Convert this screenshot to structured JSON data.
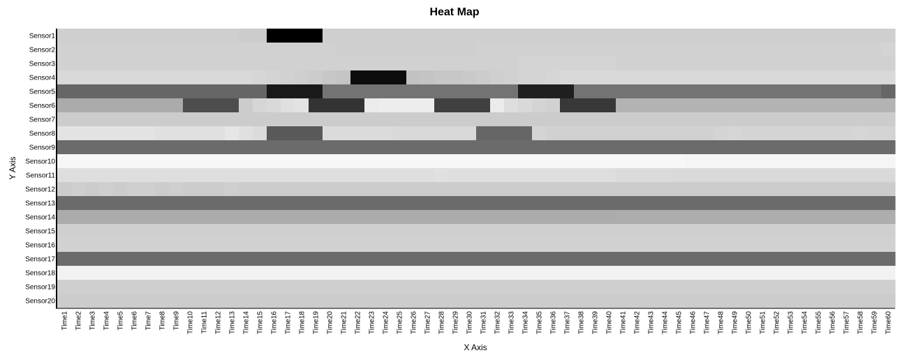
{
  "chart_data": {
    "type": "heatmap",
    "title": "Heat Map",
    "xlabel": "X Axis",
    "ylabel": "Y Axis",
    "x_categories": [
      "Time1",
      "Time2",
      "Time3",
      "Time4",
      "Time5",
      "Time6",
      "Time7",
      "Time8",
      "Time9",
      "Time10",
      "Time11",
      "Time12",
      "Time13",
      "Time14",
      "Time15",
      "Time16",
      "Time17",
      "Time18",
      "Time19",
      "Time20",
      "Time21",
      "Time22",
      "Time23",
      "Time24",
      "Time25",
      "Time26",
      "Time27",
      "Time28",
      "Time29",
      "Time30",
      "Time31",
      "Time32",
      "Time33",
      "Time34",
      "Time35",
      "Time36",
      "Time37",
      "Time38",
      "Time39",
      "Time40",
      "Time41",
      "Time42",
      "Time43",
      "Time44",
      "Time45",
      "Time46",
      "Time47",
      "Time48",
      "Time49",
      "Time50",
      "Time51",
      "Time52",
      "Time53",
      "Time54",
      "Time55",
      "Time56",
      "Time57",
      "Time58",
      "Time59",
      "Time60"
    ],
    "y_categories": [
      "Sensor1",
      "Sensor2",
      "Sensor3",
      "Sensor4",
      "Sensor5",
      "Sensor6",
      "Sensor7",
      "Sensor8",
      "Sensor9",
      "Sensor10",
      "Sensor11",
      "Sensor12",
      "Sensor13",
      "Sensor14",
      "Sensor15",
      "Sensor16",
      "Sensor17",
      "Sensor18",
      "Sensor19",
      "Sensor20"
    ],
    "color_scale": {
      "low": "#ffffff",
      "high": "#000000",
      "min": 0,
      "max": 1
    },
    "values": [
      [
        0.19,
        0.19,
        0.19,
        0.19,
        0.19,
        0.19,
        0.19,
        0.19,
        0.19,
        0.19,
        0.19,
        0.19,
        0.19,
        0.2,
        0.2,
        1.0,
        1.0,
        1.0,
        1.0,
        0.19,
        0.19,
        0.19,
        0.19,
        0.19,
        0.19,
        0.19,
        0.19,
        0.19,
        0.19,
        0.19,
        0.19,
        0.19,
        0.19,
        0.19,
        0.19,
        0.19,
        0.19,
        0.19,
        0.19,
        0.19,
        0.19,
        0.19,
        0.19,
        0.19,
        0.19,
        0.19,
        0.19,
        0.19,
        0.19,
        0.19,
        0.19,
        0.19,
        0.19,
        0.19,
        0.19,
        0.19,
        0.19,
        0.19,
        0.19,
        0.19
      ],
      [
        0.18,
        0.18,
        0.18,
        0.18,
        0.18,
        0.18,
        0.18,
        0.18,
        0.18,
        0.18,
        0.18,
        0.18,
        0.18,
        0.18,
        0.18,
        0.18,
        0.18,
        0.18,
        0.18,
        0.18,
        0.19,
        0.19,
        0.19,
        0.19,
        0.19,
        0.19,
        0.19,
        0.19,
        0.19,
        0.19,
        0.18,
        0.18,
        0.18,
        0.18,
        0.18,
        0.18,
        0.18,
        0.18,
        0.18,
        0.18,
        0.18,
        0.18,
        0.18,
        0.18,
        0.18,
        0.18,
        0.18,
        0.18,
        0.18,
        0.18,
        0.18,
        0.18,
        0.18,
        0.18,
        0.18,
        0.18,
        0.18,
        0.18,
        0.18,
        0.17
      ],
      [
        0.18,
        0.18,
        0.18,
        0.18,
        0.18,
        0.18,
        0.18,
        0.18,
        0.18,
        0.18,
        0.18,
        0.18,
        0.18,
        0.18,
        0.18,
        0.18,
        0.18,
        0.18,
        0.18,
        0.18,
        0.18,
        0.18,
        0.18,
        0.18,
        0.18,
        0.18,
        0.18,
        0.18,
        0.18,
        0.18,
        0.18,
        0.18,
        0.18,
        0.17,
        0.17,
        0.17,
        0.17,
        0.17,
        0.17,
        0.17,
        0.18,
        0.18,
        0.18,
        0.18,
        0.18,
        0.18,
        0.18,
        0.18,
        0.18,
        0.18,
        0.18,
        0.18,
        0.18,
        0.18,
        0.18,
        0.18,
        0.18,
        0.18,
        0.18,
        0.18
      ],
      [
        0.15,
        0.15,
        0.15,
        0.15,
        0.15,
        0.15,
        0.15,
        0.15,
        0.15,
        0.15,
        0.15,
        0.15,
        0.15,
        0.15,
        0.16,
        0.17,
        0.18,
        0.19,
        0.2,
        0.22,
        0.23,
        0.95,
        0.95,
        0.95,
        0.95,
        0.24,
        0.23,
        0.22,
        0.22,
        0.21,
        0.2,
        0.19,
        0.18,
        0.17,
        0.17,
        0.16,
        0.15,
        0.15,
        0.15,
        0.15,
        0.15,
        0.15,
        0.15,
        0.15,
        0.15,
        0.15,
        0.15,
        0.15,
        0.15,
        0.15,
        0.15,
        0.15,
        0.15,
        0.15,
        0.15,
        0.15,
        0.15,
        0.15,
        0.15,
        0.15
      ],
      [
        0.6,
        0.6,
        0.6,
        0.6,
        0.6,
        0.6,
        0.6,
        0.6,
        0.6,
        0.6,
        0.6,
        0.6,
        0.6,
        0.6,
        0.6,
        0.9,
        0.9,
        0.9,
        0.9,
        0.55,
        0.55,
        0.55,
        0.55,
        0.55,
        0.55,
        0.55,
        0.55,
        0.55,
        0.55,
        0.55,
        0.55,
        0.55,
        0.55,
        0.88,
        0.88,
        0.88,
        0.88,
        0.55,
        0.55,
        0.55,
        0.55,
        0.55,
        0.55,
        0.55,
        0.55,
        0.55,
        0.55,
        0.55,
        0.55,
        0.55,
        0.55,
        0.55,
        0.55,
        0.55,
        0.55,
        0.55,
        0.55,
        0.55,
        0.55,
        0.6
      ],
      [
        0.33,
        0.33,
        0.33,
        0.33,
        0.33,
        0.33,
        0.33,
        0.33,
        0.33,
        0.7,
        0.7,
        0.7,
        0.7,
        0.2,
        0.16,
        0.15,
        0.12,
        0.11,
        0.8,
        0.8,
        0.8,
        0.8,
        0.08,
        0.07,
        0.07,
        0.07,
        0.07,
        0.75,
        0.75,
        0.75,
        0.75,
        0.08,
        0.13,
        0.15,
        0.17,
        0.18,
        0.78,
        0.78,
        0.78,
        0.78,
        0.3,
        0.3,
        0.3,
        0.3,
        0.3,
        0.3,
        0.3,
        0.3,
        0.3,
        0.3,
        0.3,
        0.3,
        0.3,
        0.3,
        0.3,
        0.3,
        0.3,
        0.3,
        0.3,
        0.3
      ],
      [
        0.2,
        0.2,
        0.2,
        0.2,
        0.2,
        0.2,
        0.2,
        0.2,
        0.2,
        0.2,
        0.2,
        0.2,
        0.2,
        0.2,
        0.2,
        0.2,
        0.2,
        0.2,
        0.2,
        0.2,
        0.2,
        0.2,
        0.2,
        0.2,
        0.2,
        0.2,
        0.2,
        0.2,
        0.2,
        0.2,
        0.2,
        0.2,
        0.2,
        0.2,
        0.2,
        0.2,
        0.2,
        0.2,
        0.2,
        0.2,
        0.2,
        0.2,
        0.2,
        0.2,
        0.2,
        0.2,
        0.2,
        0.2,
        0.2,
        0.2,
        0.2,
        0.2,
        0.2,
        0.2,
        0.2,
        0.2,
        0.2,
        0.2,
        0.2,
        0.2
      ],
      [
        0.11,
        0.11,
        0.11,
        0.11,
        0.11,
        0.11,
        0.11,
        0.12,
        0.12,
        0.12,
        0.12,
        0.12,
        0.1,
        0.12,
        0.14,
        0.65,
        0.65,
        0.65,
        0.65,
        0.14,
        0.14,
        0.14,
        0.14,
        0.14,
        0.15,
        0.15,
        0.15,
        0.15,
        0.15,
        0.15,
        0.6,
        0.6,
        0.6,
        0.6,
        0.17,
        0.18,
        0.18,
        0.18,
        0.18,
        0.18,
        0.18,
        0.18,
        0.18,
        0.18,
        0.18,
        0.18,
        0.18,
        0.17,
        0.16,
        0.17,
        0.17,
        0.17,
        0.17,
        0.17,
        0.17,
        0.17,
        0.17,
        0.16,
        0.17,
        0.17
      ],
      [
        0.58,
        0.58,
        0.58,
        0.58,
        0.58,
        0.58,
        0.58,
        0.58,
        0.58,
        0.58,
        0.58,
        0.58,
        0.58,
        0.58,
        0.58,
        0.58,
        0.58,
        0.58,
        0.58,
        0.58,
        0.58,
        0.58,
        0.58,
        0.58,
        0.58,
        0.58,
        0.58,
        0.58,
        0.58,
        0.58,
        0.58,
        0.58,
        0.58,
        0.58,
        0.58,
        0.58,
        0.58,
        0.58,
        0.58,
        0.58,
        0.58,
        0.58,
        0.58,
        0.58,
        0.58,
        0.58,
        0.58,
        0.58,
        0.58,
        0.58,
        0.58,
        0.58,
        0.58,
        0.58,
        0.58,
        0.58,
        0.58,
        0.58,
        0.58,
        0.58
      ],
      [
        0.03,
        0.03,
        0.03,
        0.03,
        0.03,
        0.03,
        0.03,
        0.03,
        0.03,
        0.03,
        0.03,
        0.03,
        0.03,
        0.03,
        0.03,
        0.03,
        0.03,
        0.03,
        0.03,
        0.03,
        0.03,
        0.03,
        0.03,
        0.03,
        0.03,
        0.03,
        0.03,
        0.03,
        0.03,
        0.03,
        0.03,
        0.03,
        0.03,
        0.03,
        0.03,
        0.03,
        0.03,
        0.03,
        0.03,
        0.03,
        0.03,
        0.03,
        0.03,
        0.03,
        0.03,
        0.04,
        0.04,
        0.04,
        0.04,
        0.04,
        0.04,
        0.04,
        0.04,
        0.04,
        0.04,
        0.04,
        0.04,
        0.04,
        0.04,
        0.04
      ],
      [
        0.13,
        0.13,
        0.13,
        0.13,
        0.13,
        0.13,
        0.13,
        0.13,
        0.13,
        0.13,
        0.13,
        0.13,
        0.13,
        0.13,
        0.13,
        0.13,
        0.13,
        0.13,
        0.13,
        0.13,
        0.13,
        0.13,
        0.13,
        0.13,
        0.13,
        0.13,
        0.13,
        0.12,
        0.13,
        0.13,
        0.13,
        0.13,
        0.13,
        0.13,
        0.13,
        0.13,
        0.13,
        0.13,
        0.13,
        0.13,
        0.14,
        0.14,
        0.14,
        0.14,
        0.15,
        0.15,
        0.15,
        0.15,
        0.15,
        0.15,
        0.15,
        0.15,
        0.15,
        0.15,
        0.15,
        0.15,
        0.15,
        0.15,
        0.15,
        0.15
      ],
      [
        0.2,
        0.19,
        0.2,
        0.19,
        0.2,
        0.19,
        0.19,
        0.2,
        0.19,
        0.2,
        0.2,
        0.2,
        0.19,
        0.2,
        0.2,
        0.2,
        0.2,
        0.2,
        0.2,
        0.2,
        0.2,
        0.2,
        0.2,
        0.2,
        0.2,
        0.2,
        0.2,
        0.2,
        0.2,
        0.2,
        0.2,
        0.2,
        0.2,
        0.2,
        0.2,
        0.2,
        0.2,
        0.2,
        0.2,
        0.2,
        0.2,
        0.2,
        0.2,
        0.2,
        0.2,
        0.2,
        0.2,
        0.2,
        0.2,
        0.2,
        0.2,
        0.2,
        0.2,
        0.2,
        0.2,
        0.2,
        0.2,
        0.2,
        0.2,
        0.2
      ],
      [
        0.58,
        0.58,
        0.58,
        0.58,
        0.58,
        0.58,
        0.58,
        0.58,
        0.58,
        0.58,
        0.58,
        0.58,
        0.58,
        0.58,
        0.58,
        0.58,
        0.58,
        0.58,
        0.58,
        0.58,
        0.58,
        0.58,
        0.58,
        0.58,
        0.58,
        0.58,
        0.58,
        0.58,
        0.58,
        0.58,
        0.58,
        0.58,
        0.58,
        0.58,
        0.58,
        0.58,
        0.58,
        0.58,
        0.58,
        0.58,
        0.58,
        0.58,
        0.58,
        0.58,
        0.58,
        0.58,
        0.58,
        0.58,
        0.58,
        0.58,
        0.58,
        0.58,
        0.58,
        0.58,
        0.58,
        0.58,
        0.58,
        0.58,
        0.58,
        0.58
      ],
      [
        0.33,
        0.33,
        0.33,
        0.33,
        0.33,
        0.33,
        0.33,
        0.33,
        0.33,
        0.33,
        0.33,
        0.33,
        0.33,
        0.33,
        0.33,
        0.33,
        0.33,
        0.33,
        0.33,
        0.33,
        0.33,
        0.33,
        0.33,
        0.33,
        0.33,
        0.33,
        0.33,
        0.33,
        0.33,
        0.33,
        0.33,
        0.33,
        0.33,
        0.33,
        0.33,
        0.33,
        0.33,
        0.33,
        0.33,
        0.33,
        0.32,
        0.32,
        0.32,
        0.32,
        0.32,
        0.32,
        0.32,
        0.32,
        0.32,
        0.32,
        0.32,
        0.32,
        0.32,
        0.32,
        0.32,
        0.32,
        0.32,
        0.32,
        0.32,
        0.32
      ],
      [
        0.19,
        0.19,
        0.19,
        0.19,
        0.19,
        0.19,
        0.19,
        0.19,
        0.19,
        0.19,
        0.19,
        0.19,
        0.19,
        0.19,
        0.19,
        0.19,
        0.19,
        0.19,
        0.19,
        0.19,
        0.19,
        0.19,
        0.19,
        0.19,
        0.19,
        0.19,
        0.19,
        0.19,
        0.19,
        0.19,
        0.19,
        0.19,
        0.19,
        0.19,
        0.19,
        0.19,
        0.19,
        0.19,
        0.19,
        0.19,
        0.19,
        0.19,
        0.19,
        0.19,
        0.19,
        0.19,
        0.19,
        0.19,
        0.19,
        0.19,
        0.19,
        0.19,
        0.19,
        0.19,
        0.19,
        0.19,
        0.19,
        0.19,
        0.19,
        0.19
      ],
      [
        0.18,
        0.18,
        0.18,
        0.18,
        0.18,
        0.18,
        0.18,
        0.18,
        0.18,
        0.18,
        0.18,
        0.18,
        0.18,
        0.18,
        0.18,
        0.18,
        0.18,
        0.18,
        0.18,
        0.18,
        0.18,
        0.18,
        0.18,
        0.18,
        0.18,
        0.18,
        0.18,
        0.18,
        0.18,
        0.18,
        0.18,
        0.18,
        0.18,
        0.18,
        0.18,
        0.18,
        0.18,
        0.18,
        0.18,
        0.18,
        0.18,
        0.18,
        0.18,
        0.18,
        0.18,
        0.18,
        0.18,
        0.18,
        0.18,
        0.18,
        0.18,
        0.18,
        0.18,
        0.18,
        0.18,
        0.18,
        0.18,
        0.18,
        0.18,
        0.18
      ],
      [
        0.58,
        0.58,
        0.58,
        0.58,
        0.58,
        0.58,
        0.58,
        0.58,
        0.58,
        0.58,
        0.58,
        0.58,
        0.58,
        0.58,
        0.58,
        0.58,
        0.58,
        0.58,
        0.58,
        0.58,
        0.58,
        0.58,
        0.58,
        0.58,
        0.58,
        0.58,
        0.58,
        0.58,
        0.58,
        0.58,
        0.58,
        0.58,
        0.58,
        0.58,
        0.58,
        0.58,
        0.58,
        0.58,
        0.58,
        0.58,
        0.58,
        0.58,
        0.58,
        0.58,
        0.58,
        0.58,
        0.58,
        0.58,
        0.58,
        0.58,
        0.58,
        0.58,
        0.58,
        0.58,
        0.58,
        0.58,
        0.58,
        0.58,
        0.58,
        0.58
      ],
      [
        0.05,
        0.05,
        0.05,
        0.05,
        0.05,
        0.05,
        0.05,
        0.05,
        0.05,
        0.05,
        0.05,
        0.05,
        0.05,
        0.05,
        0.05,
        0.05,
        0.05,
        0.05,
        0.05,
        0.05,
        0.05,
        0.05,
        0.05,
        0.05,
        0.05,
        0.05,
        0.05,
        0.05,
        0.05,
        0.05,
        0.05,
        0.05,
        0.05,
        0.05,
        0.05,
        0.05,
        0.05,
        0.05,
        0.05,
        0.05,
        0.05,
        0.05,
        0.05,
        0.05,
        0.05,
        0.05,
        0.05,
        0.05,
        0.05,
        0.05,
        0.05,
        0.05,
        0.05,
        0.05,
        0.05,
        0.05,
        0.05,
        0.05,
        0.05,
        0.05
      ],
      [
        0.19,
        0.19,
        0.19,
        0.19,
        0.19,
        0.19,
        0.19,
        0.19,
        0.19,
        0.19,
        0.19,
        0.19,
        0.19,
        0.19,
        0.19,
        0.19,
        0.19,
        0.19,
        0.19,
        0.19,
        0.19,
        0.19,
        0.19,
        0.19,
        0.19,
        0.19,
        0.19,
        0.19,
        0.19,
        0.19,
        0.19,
        0.19,
        0.19,
        0.19,
        0.19,
        0.19,
        0.19,
        0.19,
        0.19,
        0.19,
        0.19,
        0.19,
        0.19,
        0.19,
        0.19,
        0.19,
        0.19,
        0.19,
        0.19,
        0.19,
        0.19,
        0.19,
        0.19,
        0.19,
        0.19,
        0.19,
        0.19,
        0.19,
        0.19,
        0.19
      ],
      [
        0.2,
        0.2,
        0.2,
        0.2,
        0.2,
        0.2,
        0.2,
        0.2,
        0.2,
        0.2,
        0.2,
        0.2,
        0.2,
        0.2,
        0.2,
        0.2,
        0.2,
        0.2,
        0.2,
        0.2,
        0.2,
        0.2,
        0.2,
        0.2,
        0.2,
        0.2,
        0.2,
        0.2,
        0.2,
        0.2,
        0.2,
        0.2,
        0.2,
        0.2,
        0.2,
        0.2,
        0.2,
        0.2,
        0.2,
        0.2,
        0.2,
        0.2,
        0.2,
        0.2,
        0.2,
        0.2,
        0.2,
        0.2,
        0.2,
        0.2,
        0.2,
        0.2,
        0.2,
        0.2,
        0.2,
        0.2,
        0.2,
        0.2,
        0.2,
        0.2
      ]
    ]
  }
}
